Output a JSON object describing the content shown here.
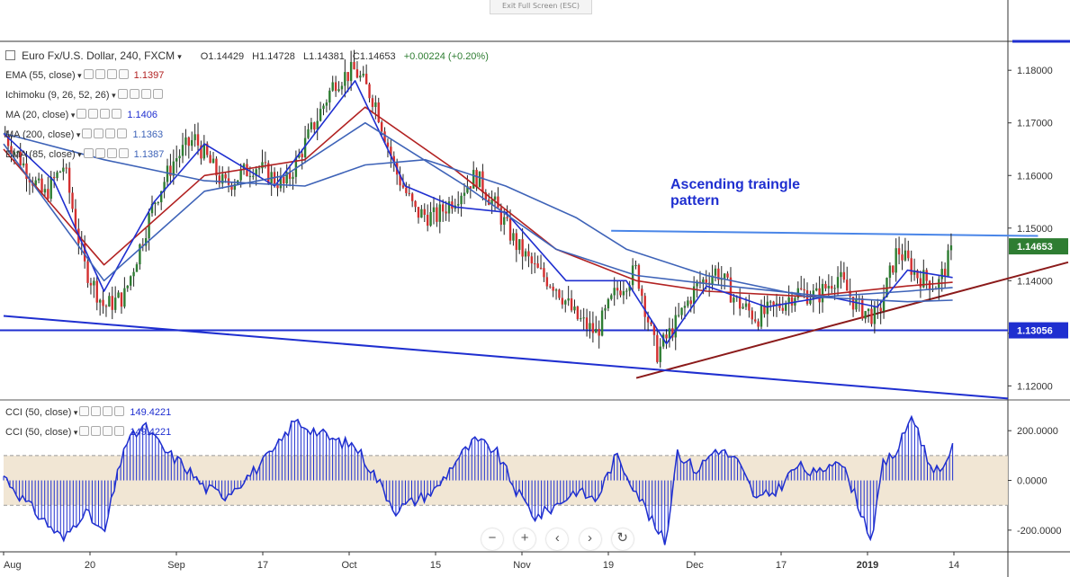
{
  "header": {
    "exit_label": "Exit Full Screen (ESC)",
    "symbol": "Euro Fx/U.S. Dollar, 240, FXCM",
    "open": "O1.14429",
    "high": "H1.14728",
    "low": "L1.14381",
    "close": "C1.14653",
    "change": "+0.00224 (+0.20%)"
  },
  "indicators": [
    {
      "label": "EMA (55, close)",
      "value": "1.1397",
      "color": "#b22222"
    },
    {
      "label": "Ichimoku (9, 26, 52, 26)",
      "value": "",
      "color": "#2962ff"
    },
    {
      "label": "MA (20, close)",
      "value": "1.1406",
      "color": "#1f2fd0"
    },
    {
      "label": "MA (200, close)",
      "value": "1.1363",
      "color": "#3e63b8"
    },
    {
      "label": "EMA (85, close)",
      "value": "1.1387",
      "color": "#3e63b8"
    }
  ],
  "cci_indicators": [
    {
      "label": "CCI (50, close)",
      "value": "149.4221",
      "color": "#1f2fd0"
    },
    {
      "label": "CCI (50, close)",
      "value": "149.4221",
      "color": "#1f2fd0"
    }
  ],
  "annotation": "Ascending traingle\npattern",
  "nav_buttons": [
    "−",
    "+",
    "‹",
    "›",
    "↻"
  ],
  "colors": {
    "up": "#2e7d32",
    "down": "#d32f2f",
    "price_label": "#2e7d32",
    "level_label": "#1f2fd0",
    "accent": "#1f2fd0"
  },
  "chart_data": [
    {
      "type": "candlestick",
      "title": "Euro Fx/U.S. Dollar, 240, FXCM",
      "ylim": [
        1.1175,
        1.1855
      ],
      "y_ticks": [
        1.12,
        1.13,
        1.14,
        1.15,
        1.16,
        1.17,
        1.18
      ],
      "y_tick_labels": [
        "1.12000",
        "1.13000",
        "1.14000",
        "1.15000",
        "1.16000",
        "1.17000",
        "1.18000"
      ],
      "x_tick_labels": [
        "Aug",
        "20",
        "Sep",
        "17",
        "Oct",
        "15",
        "Nov",
        "19",
        "Dec",
        "17",
        "2019",
        "14"
      ],
      "last_price": 1.14653,
      "last_price_label": "1.14653",
      "support_level": 1.13056,
      "support_label": "1.13056",
      "close_path": [
        [
          0,
          1.168
        ],
        [
          0.02,
          1.162
        ],
        [
          0.04,
          1.156
        ],
        [
          0.06,
          1.162
        ],
        [
          0.08,
          1.143
        ],
        [
          0.1,
          1.135
        ],
        [
          0.12,
          1.137
        ],
        [
          0.15,
          1.155
        ],
        [
          0.17,
          1.163
        ],
        [
          0.19,
          1.167
        ],
        [
          0.22,
          1.158
        ],
        [
          0.25,
          1.162
        ],
        [
          0.28,
          1.158
        ],
        [
          0.31,
          1.17
        ],
        [
          0.33,
          1.178
        ],
        [
          0.35,
          1.18
        ],
        [
          0.37,
          1.174
        ],
        [
          0.39,
          1.161
        ],
        [
          0.41,
          1.153
        ],
        [
          0.43,
          1.152
        ],
        [
          0.45,
          1.156
        ],
        [
          0.47,
          1.16
        ],
        [
          0.49,
          1.154
        ],
        [
          0.51,
          1.147
        ],
        [
          0.53,
          1.142
        ],
        [
          0.55,
          1.139
        ],
        [
          0.57,
          1.133
        ],
        [
          0.59,
          1.13
        ],
        [
          0.61,
          1.138
        ],
        [
          0.63,
          1.142
        ],
        [
          0.65,
          1.126
        ],
        [
          0.67,
          1.132
        ],
        [
          0.69,
          1.139
        ],
        [
          0.71,
          1.142
        ],
        [
          0.73,
          1.136
        ],
        [
          0.75,
          1.133
        ],
        [
          0.77,
          1.135
        ],
        [
          0.79,
          1.138
        ],
        [
          0.81,
          1.137
        ],
        [
          0.83,
          1.141
        ],
        [
          0.85,
          1.135
        ],
        [
          0.87,
          1.133
        ],
        [
          0.89,
          1.146
        ],
        [
          0.91,
          1.141
        ],
        [
          0.93,
          1.139
        ],
        [
          0.945,
          1.146
        ]
      ],
      "ma_lines": [
        {
          "name": "EMA (55, close)",
          "color": "#b22222",
          "points": [
            [
              0,
              1.165
            ],
            [
              0.1,
              1.143
            ],
            [
              0.2,
              1.16
            ],
            [
              0.3,
              1.163
            ],
            [
              0.36,
              1.173
            ],
            [
              0.45,
              1.161
            ],
            [
              0.55,
              1.146
            ],
            [
              0.63,
              1.14
            ],
            [
              0.7,
              1.138
            ],
            [
              0.8,
              1.137
            ],
            [
              0.9,
              1.139
            ],
            [
              0.945,
              1.1397
            ]
          ]
        },
        {
          "name": "MA (20, close)",
          "color": "#1f2fd0",
          "points": [
            [
              0,
              1.168
            ],
            [
              0.05,
              1.159
            ],
            [
              0.1,
              1.138
            ],
            [
              0.15,
              1.155
            ],
            [
              0.2,
              1.166
            ],
            [
              0.27,
              1.158
            ],
            [
              0.35,
              1.178
            ],
            [
              0.4,
              1.158
            ],
            [
              0.45,
              1.154
            ],
            [
              0.5,
              1.153
            ],
            [
              0.56,
              1.14
            ],
            [
              0.62,
              1.14
            ],
            [
              0.66,
              1.128
            ],
            [
              0.7,
              1.139
            ],
            [
              0.76,
              1.135
            ],
            [
              0.82,
              1.137
            ],
            [
              0.87,
              1.135
            ],
            [
              0.9,
              1.142
            ],
            [
              0.945,
              1.1406
            ]
          ]
        },
        {
          "name": "MA (200, close)",
          "color": "#3e63b8",
          "points": [
            [
              0,
              1.168
            ],
            [
              0.1,
              1.163
            ],
            [
              0.2,
              1.159
            ],
            [
              0.3,
              1.158
            ],
            [
              0.36,
              1.162
            ],
            [
              0.42,
              1.163
            ],
            [
              0.5,
              1.158
            ],
            [
              0.57,
              1.152
            ],
            [
              0.62,
              1.146
            ],
            [
              0.7,
              1.141
            ],
            [
              0.8,
              1.137
            ],
            [
              0.9,
              1.136
            ],
            [
              0.945,
              1.1363
            ]
          ]
        },
        {
          "name": "EMA (85, close)",
          "color": "#3e63b8",
          "points": [
            [
              0,
              1.166
            ],
            [
              0.1,
              1.14
            ],
            [
              0.2,
              1.157
            ],
            [
              0.28,
              1.16
            ],
            [
              0.36,
              1.17
            ],
            [
              0.46,
              1.158
            ],
            [
              0.55,
              1.146
            ],
            [
              0.63,
              1.141
            ],
            [
              0.72,
              1.139
            ],
            [
              0.82,
              1.137
            ],
            [
              0.9,
              1.138
            ],
            [
              0.945,
              1.1387
            ]
          ]
        }
      ],
      "trend_lines": [
        {
          "name": "resistance",
          "color": "#4a86e8",
          "from": [
            0.605,
            1.1495
          ],
          "to": [
            1.03,
            1.1485
          ]
        },
        {
          "name": "ascending_support",
          "color": "#8b1a1a",
          "from": [
            0.63,
            1.1215
          ],
          "to": [
            1.06,
            1.1435
          ]
        },
        {
          "name": "long_downtrend",
          "color": "#1f2fd0",
          "from": [
            0,
            1.1333
          ],
          "to": [
            1.0,
            1.1176
          ]
        }
      ]
    },
    {
      "type": "area",
      "title": "CCI (50, close)",
      "ylim": [
        -280,
        320
      ],
      "y_ticks": [
        -200,
        0,
        200
      ],
      "y_tick_labels": [
        "-200.0000",
        "0.0000",
        "200.0000"
      ],
      "band": [
        -100,
        100
      ],
      "last_value": 149.4221,
      "points": [
        [
          0,
          20
        ],
        [
          0.02,
          -80
        ],
        [
          0.04,
          -160
        ],
        [
          0.06,
          -240
        ],
        [
          0.08,
          -120
        ],
        [
          0.1,
          -220
        ],
        [
          0.11,
          -40
        ],
        [
          0.12,
          140
        ],
        [
          0.14,
          220
        ],
        [
          0.16,
          120
        ],
        [
          0.18,
          60
        ],
        [
          0.2,
          -30
        ],
        [
          0.22,
          -60
        ],
        [
          0.25,
          40
        ],
        [
          0.27,
          120
        ],
        [
          0.29,
          240
        ],
        [
          0.31,
          200
        ],
        [
          0.33,
          160
        ],
        [
          0.35,
          140
        ],
        [
          0.37,
          20
        ],
        [
          0.39,
          -120
        ],
        [
          0.41,
          -80
        ],
        [
          0.43,
          -40
        ],
        [
          0.45,
          80
        ],
        [
          0.47,
          160
        ],
        [
          0.49,
          120
        ],
        [
          0.51,
          -40
        ],
        [
          0.53,
          -150
        ],
        [
          0.55,
          -100
        ],
        [
          0.57,
          -40
        ],
        [
          0.59,
          -80
        ],
        [
          0.61,
          100
        ],
        [
          0.63,
          -40
        ],
        [
          0.65,
          -200
        ],
        [
          0.66,
          -250
        ],
        [
          0.67,
          120
        ],
        [
          0.69,
          40
        ],
        [
          0.71,
          130
        ],
        [
          0.73,
          80
        ],
        [
          0.75,
          -80
        ],
        [
          0.77,
          -40
        ],
        [
          0.79,
          60
        ],
        [
          0.81,
          20
        ],
        [
          0.83,
          100
        ],
        [
          0.845,
          -30
        ],
        [
          0.855,
          -140
        ],
        [
          0.865,
          -240
        ],
        [
          0.875,
          60
        ],
        [
          0.89,
          120
        ],
        [
          0.905,
          270
        ],
        [
          0.92,
          80
        ],
        [
          0.935,
          20
        ],
        [
          0.945,
          149.4
        ]
      ]
    }
  ]
}
